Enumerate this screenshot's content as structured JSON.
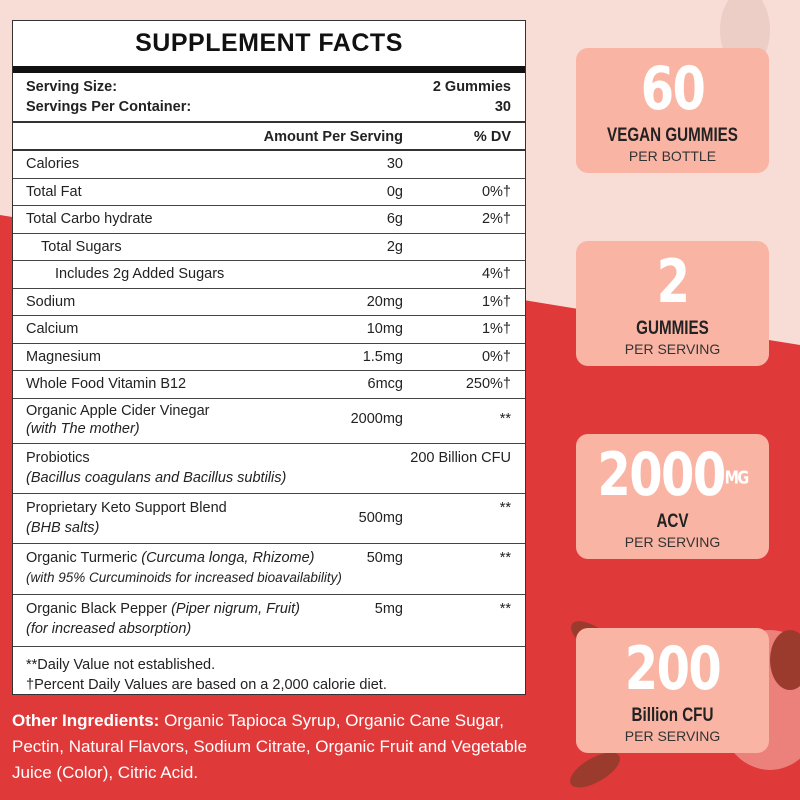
{
  "colors": {
    "red": "#e0393a",
    "pink_bg": "#f8ddd7",
    "card": "#f9b4a4"
  },
  "facts": {
    "title": "SUPPLEMENT FACTS",
    "serving_size_label": "Serving Size:",
    "serving_size": "2 Gummies",
    "servings_label": "Servings Per Container:",
    "servings": "30",
    "amount_header": "Amount Per Serving",
    "dv_header": "% DV",
    "rows": [
      {
        "name": "Calories",
        "amount": "30",
        "dv": ""
      },
      {
        "name": "Total Fat",
        "amount": "0g",
        "dv": "0%†"
      },
      {
        "name": "Total Carbo hydrate",
        "amount": "6g",
        "dv": "2%†"
      },
      {
        "name": "Total Sugars",
        "amount": "2g",
        "dv": ""
      },
      {
        "name": "Includes 2g Added Sugars",
        "amount": "",
        "dv": "4%†"
      },
      {
        "name": "Sodium",
        "amount": "20mg",
        "dv": "1%†"
      },
      {
        "name": "Calcium",
        "amount": "10mg",
        "dv": "1%†"
      },
      {
        "name": "Magnesium",
        "amount": "1.5mg",
        "dv": "0%†"
      },
      {
        "name": "Whole Food Vitamin B12",
        "amount": "6mcg",
        "dv": "250%†"
      }
    ],
    "acv": {
      "name": "Organic Apple Cider Vinegar",
      "note": "(with The mother)",
      "amount": "2000mg",
      "dv": "**"
    },
    "probiotics": {
      "name": "Probiotics",
      "note": "(Bacillus coagulans and Bacillus subtilis)",
      "amount": "200 Billion CFU"
    },
    "keto": {
      "name": "Proprietary Keto Support Blend",
      "note": "(BHB salts)",
      "amount": "500mg",
      "dv": "**"
    },
    "turmeric": {
      "name": "Organic Turmeric ",
      "latin": "(Curcuma longa, Rhizome)",
      "note": "(with 95% Curcuminoids for increased bioavailability)",
      "amount": "50mg",
      "dv": "**"
    },
    "pepper": {
      "name": "Organic Black Pepper ",
      "latin": "(Piper nigrum, Fruit)",
      "note": "(for increased absorption)",
      "amount": "5mg",
      "dv": "**"
    },
    "footnote1": "**Daily Value not established.",
    "footnote2": "†Percent Daily Values are based on a 2,000 calorie diet."
  },
  "other": {
    "label": "Other Ingredients:",
    "text": " Organic Tapioca Syrup, Organic Cane Sugar,  Pectin,  Natural  Flavors, Sodium Citrate, Organic Fruit and Vegetable Juice (Color), Citric Acid."
  },
  "cards": [
    {
      "big": "60",
      "unit": "",
      "label": "VEGAN GUMMIES",
      "sub": "PER BOTTLE"
    },
    {
      "big": "2",
      "unit": "",
      "label": "GUMMIES",
      "sub": "PER SERVING"
    },
    {
      "big": "2000",
      "unit": "MG",
      "label": "ACV",
      "sub": "PER SERVING"
    },
    {
      "big": "200",
      "unit": "",
      "label": "Billion CFU",
      "sub": "PER SERVING"
    }
  ]
}
